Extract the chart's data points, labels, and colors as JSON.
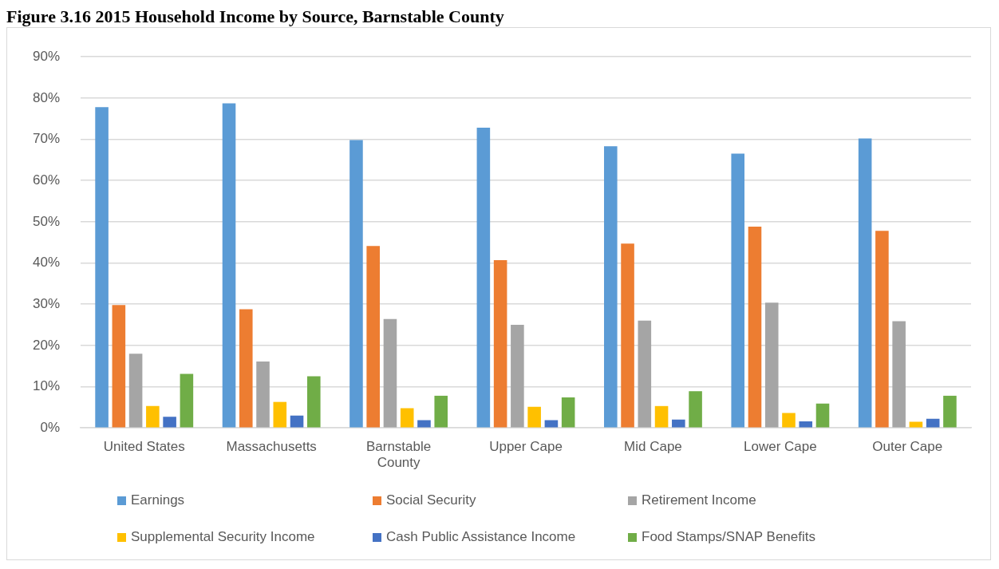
{
  "chart_data": {
    "type": "bar",
    "title": "Figure 3.16 2015 Household Income by Source, Barnstable County",
    "categories": [
      "United States",
      "Massachusetts",
      "Barnstable County",
      "Upper Cape",
      "Mid Cape",
      "Lower Cape",
      "Outer Cape"
    ],
    "series": [
      {
        "name": "Earnings",
        "color": "#5b9bd5",
        "values": [
          77.8,
          78.7,
          69.8,
          72.8,
          68.3,
          66.5,
          70.2
        ]
      },
      {
        "name": "Social Security",
        "color": "#ed7d31",
        "values": [
          29.8,
          28.8,
          44.1,
          40.7,
          44.7,
          48.8,
          47.8
        ]
      },
      {
        "name": "Retirement Income",
        "color": "#a5a5a5",
        "values": [
          18.0,
          16.1,
          26.4,
          25.0,
          26.0,
          30.4,
          25.9
        ]
      },
      {
        "name": "Supplemental Security Income",
        "color": "#ffc000",
        "values": [
          5.3,
          6.3,
          4.8,
          5.1,
          5.3,
          3.6,
          1.5
        ]
      },
      {
        "name": "Cash Public Assistance Income",
        "color": "#4472c4",
        "values": [
          2.7,
          3.0,
          1.9,
          1.9,
          2.0,
          1.6,
          2.2
        ]
      },
      {
        "name": "Food Stamps/SNAP Benefits",
        "color": "#70ad47",
        "values": [
          13.1,
          12.5,
          7.8,
          7.4,
          8.9,
          5.9,
          7.8
        ]
      }
    ],
    "ylim": [
      0,
      90
    ],
    "yticks": [
      {
        "value": 0,
        "label": "0%"
      },
      {
        "value": 10,
        "label": "10%"
      },
      {
        "value": 20,
        "label": "20%"
      },
      {
        "value": 30,
        "label": "30%"
      },
      {
        "value": 40,
        "label": "40%"
      },
      {
        "value": 50,
        "label": "50%"
      },
      {
        "value": 60,
        "label": "60%"
      },
      {
        "value": 70,
        "label": "70%"
      },
      {
        "value": 80,
        "label": "80%"
      },
      {
        "value": 90,
        "label": "90%"
      }
    ],
    "grid": "y",
    "legend": "bottom"
  }
}
